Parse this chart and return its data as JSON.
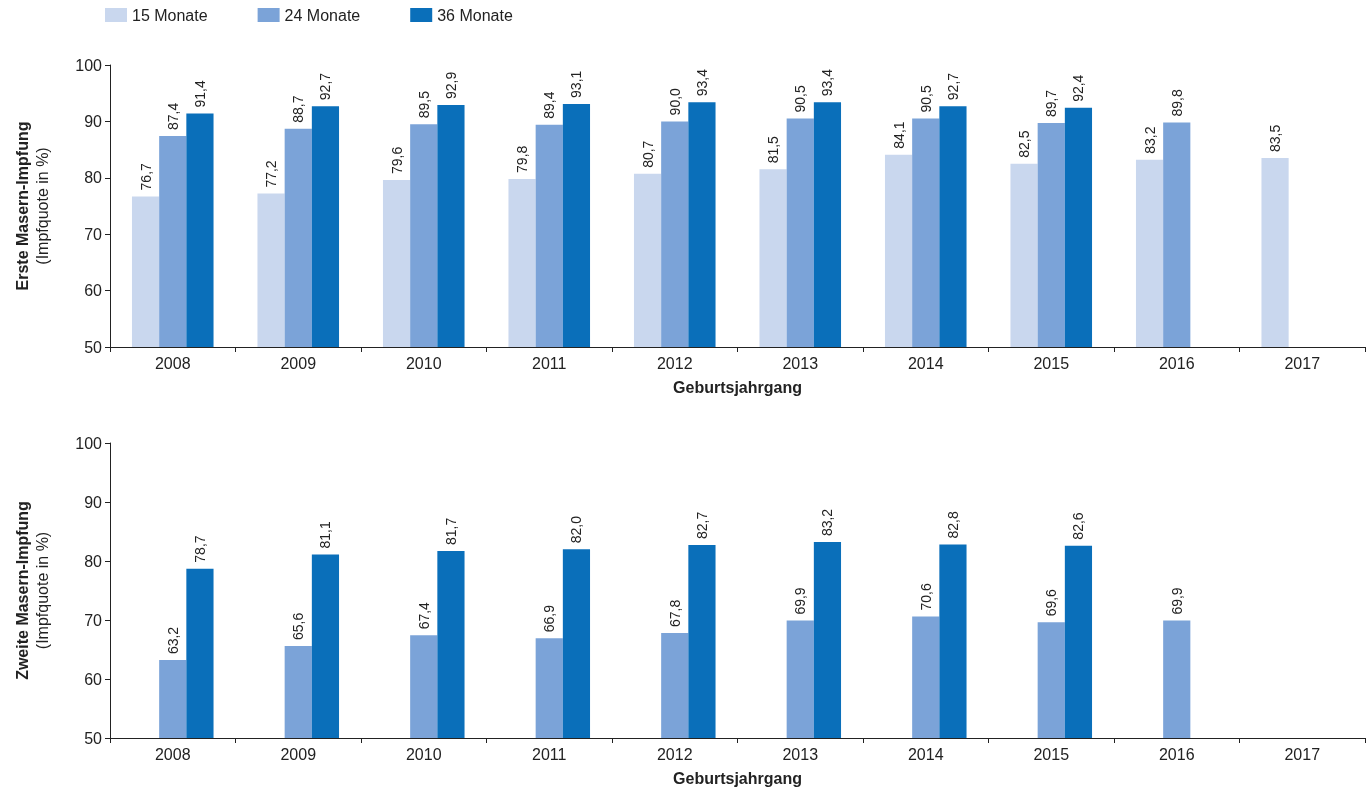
{
  "chart_data": [
    {
      "type": "bar",
      "ylabel": "Erste Masern-Impfung\n(Impfquote in %)",
      "xlabel": "Geburtsjahrgang",
      "categories": [
        "2008",
        "2009",
        "2010",
        "2011",
        "2012",
        "2013",
        "2014",
        "2015",
        "2016",
        "2017"
      ],
      "ylim": [
        50,
        100
      ],
      "yticks": [
        50,
        60,
        70,
        80,
        90,
        100
      ],
      "grid": false,
      "legend": "top left",
      "series": [
        {
          "name": "15 Monate",
          "color": "#c9d7ee",
          "values": [
            76.7,
            77.2,
            79.6,
            79.8,
            80.7,
            81.5,
            84.1,
            82.5,
            83.2,
            83.5
          ],
          "value_labels": [
            "76,7",
            "77,2",
            "79,6",
            "79,8",
            "80,7",
            "81,5",
            "84,1",
            "82,5",
            "83,2",
            "83,5"
          ]
        },
        {
          "name": "24 Monate",
          "color": "#7ba3d8",
          "values": [
            87.4,
            88.7,
            89.5,
            89.4,
            90.0,
            90.5,
            90.5,
            89.7,
            89.8,
            null
          ],
          "value_labels": [
            "87,4",
            "88,7",
            "89,5",
            "89,4",
            "90,0",
            "90,5",
            "90,5",
            "89,7",
            "89,8",
            null
          ]
        },
        {
          "name": "36 Monate",
          "color": "#0a6fba",
          "values": [
            91.4,
            92.7,
            92.9,
            93.1,
            93.4,
            93.4,
            92.7,
            92.4,
            null,
            null
          ],
          "value_labels": [
            "91,4",
            "92,7",
            "92,9",
            "93,1",
            "93,4",
            "93,4",
            "92,7",
            "92,4",
            null,
            null
          ]
        }
      ]
    },
    {
      "type": "bar",
      "ylabel": "Zweite Masern-Impfung\n(Impfquote in %)",
      "xlabel": "Geburtsjahrgang",
      "categories": [
        "2008",
        "2009",
        "2010",
        "2011",
        "2012",
        "2013",
        "2014",
        "2015",
        "2016",
        "2017"
      ],
      "ylim": [
        50,
        100
      ],
      "yticks": [
        50,
        60,
        70,
        80,
        90,
        100
      ],
      "grid": false,
      "legend": false,
      "series": [
        {
          "color": "#c9d7ee",
          "values": [
            null,
            null,
            null,
            null,
            null,
            null,
            null,
            null,
            null,
            null
          ]
        },
        {
          "color": "#7ba3d8",
          "values": [
            63.2,
            65.6,
            67.4,
            66.9,
            67.8,
            69.9,
            70.6,
            69.6,
            69.9,
            null
          ],
          "value_labels": [
            "63,2",
            "65,6",
            "67,4",
            "66,9",
            "67,8",
            "69,9",
            "70,6",
            "69,6",
            "69,9",
            null
          ]
        },
        {
          "color": "#0a6fba",
          "values": [
            78.7,
            81.1,
            81.7,
            82.0,
            82.7,
            83.2,
            82.8,
            82.6,
            null,
            null
          ],
          "value_labels": [
            "78,7",
            "81,1",
            "81,7",
            "82,0",
            "82,7",
            "83,2",
            "82,8",
            "82,6",
            null,
            null
          ]
        }
      ]
    }
  ]
}
